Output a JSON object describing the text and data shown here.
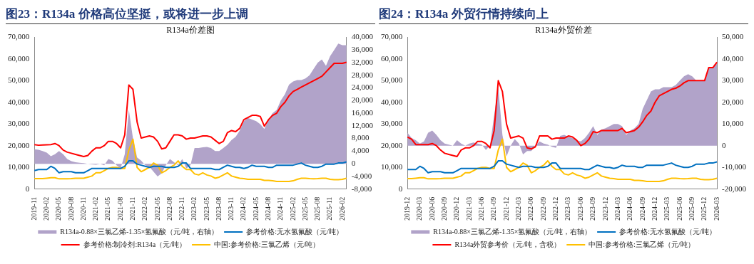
{
  "chart_data": [
    {
      "type": "line",
      "title": "图23：R134a 价格高位坚挺，或将进一步上调",
      "subtitle": "R134a价差图",
      "legend": "bottom",
      "categories": [
        "2019-11",
        null,
        null,
        "2020-02",
        null,
        null,
        "2020-05",
        null,
        null,
        "2020-08",
        null,
        null,
        "2020-11",
        null,
        null,
        "2021-02",
        null,
        null,
        "2021-05",
        null,
        null,
        "2021-08",
        null,
        null,
        "2021-11",
        null,
        null,
        "2022-02",
        null,
        null,
        "2022-05",
        null,
        null,
        "2022-08",
        null,
        null,
        "2022-11",
        null,
        null,
        "2023-02",
        null,
        null,
        "2023-05",
        null,
        null,
        "2023-08",
        null,
        null,
        "2023-11",
        null,
        null,
        "2024-02",
        null,
        null,
        "2024-05",
        null,
        null,
        "2024-08",
        null,
        null,
        "2024-11",
        null,
        null,
        "2025-02",
        null,
        null,
        "2025-05",
        null,
        null,
        "2025-08",
        null,
        null,
        "2025-11",
        null,
        null,
        "2026-02",
        null
      ],
      "series": [
        {
          "name": "R134a-0.88×三氯乙烯-1.35×氢氟酸（元/吨，右轴）",
          "type": "area",
          "axis": "y2",
          "color": "#b1a3c9",
          "values": [
            4600,
            4400,
            4000,
            3500,
            2400,
            3000,
            4000,
            3000,
            1500,
            800,
            500,
            300,
            200,
            0,
            -200,
            -300,
            0,
            -500,
            1500,
            1000,
            -500,
            -1500,
            3000,
            17000,
            8000,
            2000,
            1000,
            -500,
            -1000,
            -2500,
            -4000,
            -3000,
            -500,
            1500,
            500,
            -500,
            1500,
            -1500,
            -500,
            5000,
            5000,
            5200,
            5300,
            5000,
            4000,
            4000,
            5000,
            6000,
            7500,
            8500,
            10500,
            13500,
            14500,
            14000,
            13500,
            12500,
            11000,
            14000,
            16000,
            17000,
            20000,
            22000,
            25000,
            26000,
            26500,
            26500,
            27000,
            28000,
            30000,
            32000,
            33000,
            31000,
            34000,
            36000,
            38000,
            37500,
            37500
          ]
        },
        {
          "name": "参考价格:无水氢氟酸（元/吨）",
          "type": "line",
          "color": "#0070c0",
          "values": [
            8500,
            9000,
            9000,
            9000,
            10500,
            9500,
            7500,
            8000,
            8000,
            8000,
            7500,
            7500,
            7500,
            8500,
            9500,
            9500,
            9500,
            9500,
            9500,
            9500,
            9500,
            9500,
            10500,
            13000,
            13000,
            11500,
            11000,
            10500,
            10000,
            10500,
            10500,
            10500,
            10000,
            10000,
            10000,
            10500,
            12000,
            12000,
            9500,
            9500,
            9500,
            9500,
            9500,
            9500,
            9000,
            9000,
            10000,
            11000,
            10500,
            10000,
            10000,
            9500,
            10000,
            11000,
            10500,
            10500,
            10500,
            10000,
            10000,
            11000,
            11000,
            11000,
            11000,
            11000,
            11500,
            12000,
            11000,
            10500,
            10000,
            10000,
            10500,
            11500,
            11500,
            11500,
            12000,
            12000,
            12500
          ]
        },
        {
          "name": "参考价格:制冷剂:R134a（元/吨）",
          "type": "line",
          "color": "#ff0000",
          "values": [
            20500,
            20200,
            20300,
            20400,
            20500,
            21000,
            20000,
            18000,
            17000,
            16500,
            16000,
            15500,
            15000,
            15500,
            17500,
            19000,
            19000,
            20000,
            22000,
            22000,
            21000,
            19000,
            25000,
            48000,
            46000,
            31000,
            23500,
            24000,
            24500,
            24000,
            22000,
            18500,
            19000,
            22000,
            25000,
            25000,
            24500,
            23000,
            23500,
            23500,
            24000,
            24500,
            24500,
            24000,
            22500,
            21000,
            22000,
            26000,
            27000,
            26500,
            28000,
            32000,
            33000,
            34000,
            34000,
            33500,
            29000,
            32000,
            34000,
            35000,
            38000,
            40000,
            43000,
            45000,
            46000,
            47000,
            48000,
            49000,
            50000,
            51000,
            52000,
            54000,
            56000,
            58000,
            58000,
            58000,
            58500
          ]
        },
        {
          "name": "中国:参考价格:三氯乙烯（元/吨）",
          "type": "line",
          "color": "#ffc000",
          "values": [
            4800,
            4800,
            4800,
            5000,
            5200,
            5200,
            4700,
            4700,
            4700,
            4800,
            5000,
            5000,
            5000,
            5500,
            6000,
            7500,
            7500,
            8500,
            9500,
            10000,
            10000,
            9500,
            9500,
            18000,
            23000,
            10000,
            8000,
            9000,
            10000,
            12000,
            11000,
            7500,
            8500,
            10000,
            11000,
            13000,
            10500,
            9000,
            9000,
            7000,
            6500,
            7500,
            6500,
            6000,
            5000,
            5500,
            6500,
            7500,
            6000,
            5500,
            5000,
            4800,
            4500,
            4500,
            4500,
            4500,
            4000,
            4000,
            3800,
            3500,
            3500,
            3500,
            3500,
            3800,
            4500,
            5000,
            5000,
            4800,
            4700,
            4800,
            5000,
            5000,
            4500,
            4300,
            4300,
            4500,
            5000
          ]
        }
      ],
      "ylim": [
        0,
        70000
      ],
      "yticks": [
        0,
        {
          "value": 10000,
          "label": "10,000"
        },
        {
          "value": 20000,
          "label": "20,000"
        },
        {
          "value": 30000,
          "label": "30,000"
        },
        {
          "value": 40000,
          "label": "40,000"
        },
        {
          "value": 50000,
          "label": "50,000"
        },
        {
          "value": 60000,
          "label": "60,000"
        },
        {
          "value": 70000,
          "label": "70,000"
        }
      ],
      "y2lim": [
        -8000,
        40000
      ],
      "y2ticks": [
        {
          "value": -8000,
          "label": "-8,000"
        },
        {
          "value": -4000,
          "label": "-4,000"
        },
        0,
        {
          "value": 4000,
          "label": "4,000"
        },
        {
          "value": 8000,
          "label": "8,000"
        },
        {
          "value": 12000,
          "label": "12,000"
        },
        {
          "value": 16000,
          "label": "16,000"
        },
        {
          "value": 20000,
          "label": "20,000"
        },
        {
          "value": 24000,
          "label": "24,000"
        },
        {
          "value": 28000,
          "label": "28,000"
        },
        {
          "value": 32000,
          "label": "32,000"
        },
        {
          "value": 36000,
          "label": "36,000"
        },
        {
          "value": 40000,
          "label": "40,000"
        }
      ]
    },
    {
      "type": "line",
      "title": "图24：R134a 外贸行情持续向上",
      "subtitle": "R134a外贸价差",
      "legend": "bottom",
      "categories": [
        "2019-12",
        null,
        null,
        "2020-03",
        null,
        null,
        "2020-06",
        null,
        null,
        "2020-09",
        null,
        null,
        "2020-12",
        null,
        null,
        "2021-03",
        null,
        null,
        "2021-06",
        null,
        null,
        "2021-09",
        null,
        null,
        "2021-12",
        null,
        null,
        "2022-03",
        null,
        null,
        "2022-06",
        null,
        null,
        "2022-09",
        null,
        null,
        "2022-12",
        null,
        null,
        "2023-03",
        null,
        null,
        "2023-06",
        null,
        null,
        "2023-09",
        null,
        null,
        "2023-12",
        null,
        null,
        "2024-03",
        null,
        null,
        "2024-06",
        null,
        null,
        "2024-09",
        null,
        null,
        "2024-12",
        null,
        null,
        "2025-03",
        null,
        null,
        "2025-06",
        null,
        null,
        "2025-09",
        null,
        null,
        "2025-12",
        null,
        null,
        "2026-03"
      ],
      "series": [
        {
          "name": "R134a-0.88×三氯乙烯-1.35×氢氟酸（元/吨，右轴）",
          "type": "area",
          "axis": "y2",
          "color": "#b1a3c9",
          "values": [
            6000,
            3500,
            2500,
            1000,
            2000,
            6000,
            7000,
            5000,
            2500,
            1000,
            500,
            0,
            2500,
            1000,
            0,
            1000,
            1500,
            1000,
            500,
            -2000,
            0,
            14000,
            27000,
            5000,
            -5000,
            0,
            3000,
            1000,
            -4000,
            -2500,
            -2500,
            0,
            2000,
            1000,
            500,
            -500,
            -1000,
            4500,
            5000,
            4000,
            3500,
            2500,
            2000,
            3500,
            6000,
            9000,
            5000,
            7500,
            8000,
            9000,
            10000,
            10000,
            9000,
            5000,
            7000,
            8000,
            10000,
            17000,
            21000,
            25000,
            26000,
            26000,
            27000,
            27000,
            27000,
            28000,
            30000,
            32000,
            33000,
            32000,
            30000,
            30000,
            30000,
            36000,
            36000,
            38000
          ]
        },
        {
          "name": "参考价格:无水氢氟酸（元/吨）",
          "type": "line",
          "color": "#0070c0",
          "values": [
            9000,
            9000,
            9000,
            10500,
            9500,
            7500,
            8000,
            8000,
            8000,
            7500,
            7500,
            7500,
            8500,
            9500,
            9500,
            9500,
            9500,
            9500,
            9500,
            9500,
            9500,
            10500,
            13000,
            13000,
            11500,
            11000,
            10500,
            10000,
            10500,
            10500,
            10500,
            10000,
            10000,
            10000,
            10500,
            12000,
            12000,
            9500,
            9500,
            9500,
            9500,
            9500,
            9500,
            9000,
            9000,
            10000,
            11000,
            10500,
            10000,
            10000,
            9500,
            10000,
            11000,
            10500,
            10500,
            10500,
            10000,
            10000,
            11000,
            11000,
            11000,
            11000,
            11000,
            11500,
            12000,
            11000,
            10500,
            10000,
            10000,
            10500,
            11500,
            11500,
            11500,
            12000,
            12000,
            12500
          ]
        },
        {
          "name": "R134a外贸参考价（元/吨，含税）",
          "type": "line",
          "color": "#ff0000",
          "values": [
            24000,
            23000,
            20500,
            20500,
            20500,
            20500,
            21000,
            20000,
            18000,
            16500,
            16000,
            15500,
            15000,
            18000,
            19000,
            19000,
            20000,
            22000,
            22000,
            21000,
            19000,
            27000,
            50000,
            45000,
            30000,
            23500,
            24000,
            24500,
            23500,
            19000,
            18500,
            19500,
            24500,
            24500,
            24500,
            23000,
            23500,
            23500,
            23500,
            24500,
            24000,
            22500,
            20000,
            21000,
            23000,
            26500,
            26000,
            27000,
            27000,
            27000,
            27000,
            27000,
            28000,
            26000,
            26500,
            27000,
            28500,
            31000,
            34000,
            36000,
            40000,
            43000,
            44000,
            45000,
            46000,
            46500,
            47500,
            49000,
            50000,
            50000,
            50000,
            50000,
            50000,
            56000,
            56000,
            58500
          ]
        },
        {
          "name": "中国:参考价格:三氯乙烯（元/吨）",
          "type": "line",
          "color": "#ffc000",
          "values": [
            4800,
            4800,
            5000,
            5200,
            5200,
            4700,
            4700,
            4700,
            4800,
            5000,
            5000,
            5000,
            5500,
            6000,
            7500,
            7500,
            8500,
            9500,
            10000,
            10000,
            9500,
            9500,
            18000,
            23000,
            10000,
            8000,
            9000,
            10000,
            12000,
            11000,
            7500,
            8500,
            10000,
            11000,
            13000,
            10500,
            9000,
            9000,
            7000,
            6500,
            7500,
            6500,
            6000,
            5000,
            5500,
            6500,
            7500,
            6000,
            5500,
            5000,
            4800,
            4500,
            4500,
            4500,
            4500,
            4000,
            4000,
            3800,
            3500,
            3500,
            3500,
            3500,
            3800,
            4500,
            5000,
            5000,
            4800,
            4700,
            4800,
            5000,
            5000,
            4500,
            4300,
            4300,
            4500,
            5000
          ]
        }
      ],
      "ylim": [
        0,
        70000
      ],
      "yticks": [
        0,
        {
          "value": 10000,
          "label": "10,000"
        },
        {
          "value": 20000,
          "label": "20,000"
        },
        {
          "value": 30000,
          "label": "30,000"
        },
        {
          "value": 40000,
          "label": "40,000"
        },
        {
          "value": 50000,
          "label": "50,000"
        },
        {
          "value": 60000,
          "label": "60,000"
        },
        {
          "value": 70000,
          "label": "70,000"
        }
      ],
      "y2lim": [
        -20000,
        50000
      ],
      "y2ticks": [
        {
          "value": -20000,
          "label": "-20,000"
        },
        {
          "value": -10000,
          "label": "-10,000"
        },
        0,
        {
          "value": 10000,
          "label": "10,000"
        },
        {
          "value": 20000,
          "label": "20,000"
        },
        {
          "value": 30000,
          "label": "30,000"
        },
        {
          "value": 40000,
          "label": "40,000"
        },
        {
          "value": 50000,
          "label": "50,000"
        }
      ]
    }
  ]
}
